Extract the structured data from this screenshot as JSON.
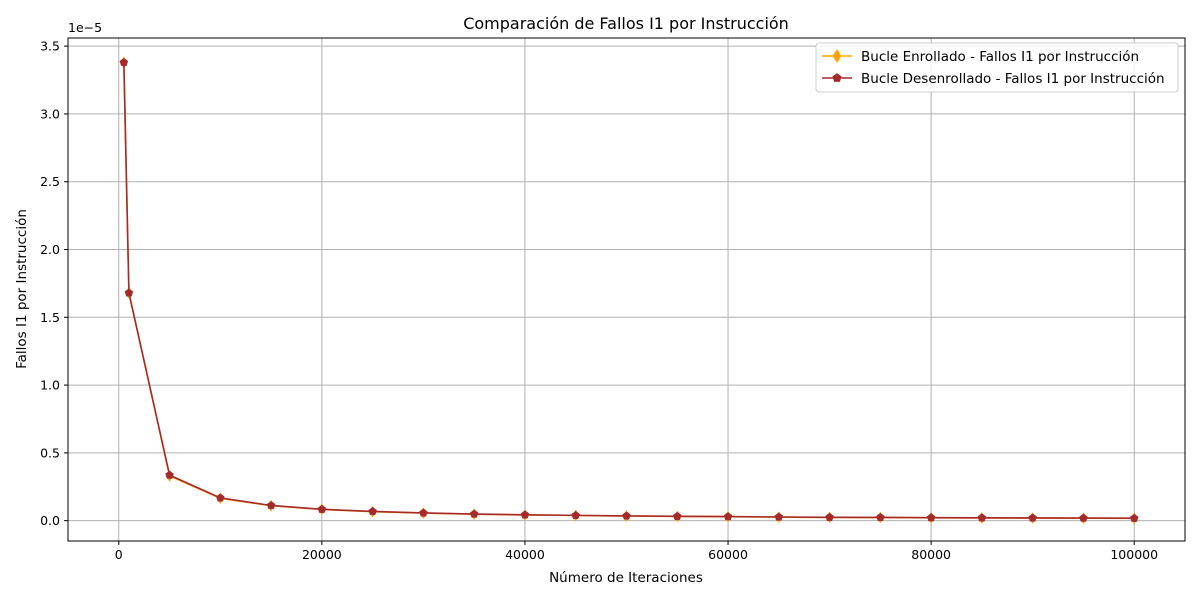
{
  "chart_data": {
    "type": "line",
    "title": "Comparación de Fallos I1 por Instrucción",
    "xlabel": "Número de Iteraciones",
    "ylabel": "Fallos I1 por Instrucción",
    "y_offset_text": "1e−5",
    "y_scale_factor": 1e-05,
    "xlim": [
      -5000,
      105000
    ],
    "ylim": [
      -0.15,
      3.56
    ],
    "x_ticks": [
      0,
      20000,
      40000,
      60000,
      80000,
      100000
    ],
    "x_tick_labels": [
      "0",
      "20000",
      "40000",
      "60000",
      "80000",
      "100000"
    ],
    "y_ticks": [
      0.0,
      0.5,
      1.0,
      1.5,
      2.0,
      2.5,
      3.0,
      3.5
    ],
    "y_tick_labels": [
      "0.0",
      "0.5",
      "1.0",
      "1.5",
      "2.0",
      "2.5",
      "3.0",
      "3.5"
    ],
    "grid": true,
    "legend_position": "top-right",
    "x": [
      500,
      1000,
      5000,
      10000,
      15000,
      20000,
      25000,
      30000,
      35000,
      40000,
      45000,
      50000,
      55000,
      60000,
      65000,
      70000,
      75000,
      80000,
      85000,
      90000,
      95000,
      100000
    ],
    "series": [
      {
        "name": "Bucle Enrollado - Fallos I1 por Instrucción",
        "color": "#ffa500",
        "marker": "thin-diamond",
        "values": [
          3.38,
          1.68,
          0.33,
          0.165,
          0.11,
          0.083,
          0.066,
          0.056,
          0.048,
          0.042,
          0.038,
          0.034,
          0.031,
          0.029,
          0.026,
          0.024,
          0.023,
          0.021,
          0.02,
          0.019,
          0.018,
          0.017
        ]
      },
      {
        "name": "Bucle Desenrollado - Fallos I1 por Instrucción",
        "color": "#a52a2a",
        "marker": "pentagon",
        "values": [
          3.38,
          1.68,
          0.336,
          0.168,
          0.112,
          0.084,
          0.068,
          0.057,
          0.049,
          0.043,
          0.039,
          0.035,
          0.032,
          0.03,
          0.027,
          0.025,
          0.024,
          0.022,
          0.021,
          0.02,
          0.019,
          0.018
        ]
      }
    ]
  }
}
